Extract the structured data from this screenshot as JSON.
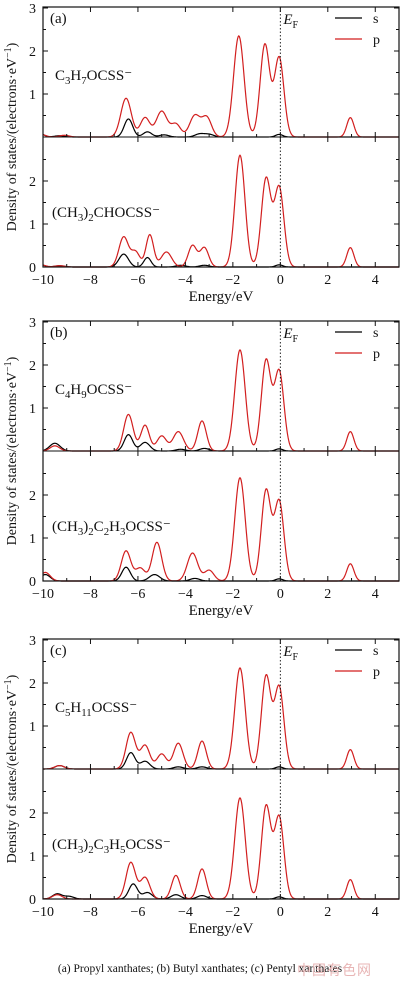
{
  "caption": "(a) Propyl xanthates; (b) Butyl xanthates; (c) Pentyl xanthates",
  "watermark": "中国有色网",
  "colors": {
    "s": "#000000",
    "p": "#d21f1f",
    "axis": "#111111"
  },
  "chart_data": [
    {
      "type": "line",
      "panel": "(a)",
      "xlabel": "Energy/eV",
      "ylabel": "Density of states/(electrons·eV⁻¹)",
      "xlim": [
        -10,
        5
      ],
      "x_ticks": [
        -10,
        -8,
        -6,
        -4,
        -2,
        0,
        2,
        4
      ],
      "fermi_label": "E_F",
      "legend": [
        "s",
        "p"
      ],
      "subplots": [
        {
          "label": "C3H7OCSS⁻",
          "ylim": [
            0,
            3
          ],
          "y_ticks": [
            1,
            2,
            3
          ],
          "series": [
            {
              "name": "s",
              "peaks": [
                [
                  -10.2,
                  0.1,
                  0.2
                ],
                [
                  -9.3,
                  0.03,
                  0.2
                ],
                [
                  -6.4,
                  0.42,
                  0.18
                ],
                [
                  -5.6,
                  0.12,
                  0.18
                ],
                [
                  -4.9,
                  0.05,
                  0.2
                ],
                [
                  -3.4,
                  0.07,
                  0.2
                ],
                [
                  -3.0,
                  0.06,
                  0.2
                ],
                [
                  -0.05,
                  0.06,
                  0.15
                ]
              ]
            },
            {
              "name": "p",
              "peaks": [
                [
                  -10.1,
                  0.06,
                  0.2
                ],
                [
                  -9.1,
                  0.04,
                  0.2
                ],
                [
                  -6.5,
                  0.9,
                  0.22
                ],
                [
                  -5.7,
                  0.45,
                  0.2
                ],
                [
                  -5.0,
                  0.6,
                  0.23
                ],
                [
                  -4.4,
                  0.3,
                  0.2
                ],
                [
                  -3.6,
                  0.5,
                  0.22
                ],
                [
                  -3.1,
                  0.45,
                  0.2
                ],
                [
                  -1.75,
                  2.35,
                  0.22
                ],
                [
                  -0.65,
                  2.15,
                  0.2
                ],
                [
                  -0.05,
                  1.85,
                  0.2
                ],
                [
                  2.95,
                  0.45,
                  0.15
                ]
              ]
            }
          ]
        },
        {
          "label": "(CH3)2CHOCSS⁻",
          "ylim": [
            0,
            3
          ],
          "y_ticks": [
            0,
            1,
            2
          ],
          "series": [
            {
              "name": "s",
              "peaks": [
                [
                  -10.2,
                  0.08,
                  0.2
                ],
                [
                  -9.3,
                  0.03,
                  0.2
                ],
                [
                  -6.6,
                  0.3,
                  0.2
                ],
                [
                  -5.6,
                  0.22,
                  0.15
                ],
                [
                  -4.2,
                  0.04,
                  0.2
                ],
                [
                  -3.2,
                  0.04,
                  0.2
                ],
                [
                  -0.05,
                  0.05,
                  0.15
                ]
              ]
            },
            {
              "name": "p",
              "peaks": [
                [
                  -10.1,
                  0.05,
                  0.2
                ],
                [
                  -9.3,
                  0.03,
                  0.2
                ],
                [
                  -6.6,
                  0.7,
                  0.2
                ],
                [
                  -6.1,
                  0.35,
                  0.18
                ],
                [
                  -5.5,
                  0.75,
                  0.16
                ],
                [
                  -4.8,
                  0.35,
                  0.22
                ],
                [
                  -3.7,
                  0.5,
                  0.18
                ],
                [
                  -3.2,
                  0.45,
                  0.18
                ],
                [
                  -1.7,
                  2.6,
                  0.21
                ],
                [
                  -0.6,
                  2.05,
                  0.2
                ],
                [
                  -0.05,
                  1.85,
                  0.2
                ],
                [
                  2.95,
                  0.45,
                  0.15
                ]
              ]
            }
          ]
        }
      ]
    },
    {
      "type": "line",
      "panel": "(b)",
      "xlabel": "Energy/eV",
      "ylabel": "Density of states/(electrons·eV⁻¹)",
      "xlim": [
        -10,
        5
      ],
      "x_ticks": [
        -10,
        -8,
        -6,
        -4,
        -2,
        0,
        2,
        4
      ],
      "fermi_label": "E_F",
      "legend": [
        "s",
        "p"
      ],
      "subplots": [
        {
          "label": "C4H9OCSS⁻",
          "ylim": [
            0,
            3
          ],
          "y_ticks": [
            1,
            2,
            3
          ],
          "series": [
            {
              "name": "s",
              "peaks": [
                [
                  -9.5,
                  0.18,
                  0.22
                ],
                [
                  -6.4,
                  0.38,
                  0.18
                ],
                [
                  -5.7,
                  0.2,
                  0.2
                ],
                [
                  -4.2,
                  0.04,
                  0.2
                ],
                [
                  -3.2,
                  0.06,
                  0.2
                ],
                [
                  -0.05,
                  0.05,
                  0.15
                ]
              ]
            },
            {
              "name": "p",
              "peaks": [
                [
                  -9.5,
                  0.12,
                  0.2
                ],
                [
                  -6.4,
                  0.85,
                  0.2
                ],
                [
                  -5.7,
                  0.6,
                  0.18
                ],
                [
                  -5.0,
                  0.35,
                  0.2
                ],
                [
                  -4.3,
                  0.45,
                  0.22
                ],
                [
                  -3.3,
                  0.7,
                  0.18
                ],
                [
                  -1.7,
                  2.35,
                  0.22
                ],
                [
                  -0.6,
                  2.1,
                  0.2
                ],
                [
                  -0.05,
                  1.85,
                  0.2
                ],
                [
                  2.95,
                  0.45,
                  0.15
                ]
              ]
            }
          ]
        },
        {
          "label": "(CH3)2C2H3OCSS⁻",
          "ylim": [
            0,
            3
          ],
          "y_ticks": [
            0,
            1,
            2
          ],
          "series": [
            {
              "name": "s",
              "peaks": [
                [
                  -9.9,
                  0.15,
                  0.2
                ],
                [
                  -6.5,
                  0.32,
                  0.18
                ],
                [
                  -5.3,
                  0.15,
                  0.22
                ],
                [
                  -3.6,
                  0.06,
                  0.2
                ],
                [
                  -0.05,
                  0.05,
                  0.15
                ]
              ]
            },
            {
              "name": "p",
              "peaks": [
                [
                  -9.9,
                  0.2,
                  0.2
                ],
                [
                  -6.5,
                  0.7,
                  0.2
                ],
                [
                  -5.9,
                  0.3,
                  0.2
                ],
                [
                  -5.2,
                  0.9,
                  0.2
                ],
                [
                  -3.7,
                  0.65,
                  0.22
                ],
                [
                  -3.0,
                  0.25,
                  0.2
                ],
                [
                  -1.7,
                  2.4,
                  0.22
                ],
                [
                  -0.6,
                  2.1,
                  0.2
                ],
                [
                  -0.05,
                  1.85,
                  0.2
                ],
                [
                  2.95,
                  0.4,
                  0.15
                ]
              ]
            }
          ]
        }
      ]
    },
    {
      "type": "line",
      "panel": "(c)",
      "xlabel": "Energy/eV",
      "ylabel": "Density of states/(electrons·eV⁻¹)",
      "xlim": [
        -10,
        5
      ],
      "x_ticks": [
        -10,
        -8,
        -6,
        -4,
        -2,
        0,
        2,
        4
      ],
      "fermi_label": "E_F",
      "legend": [
        "s",
        "p"
      ],
      "subplots": [
        {
          "label": "C5H11OCSS⁻",
          "ylim": [
            0,
            3
          ],
          "y_ticks": [
            1,
            2,
            3
          ],
          "series": [
            {
              "name": "s",
              "peaks": [
                [
                  -9.3,
                  0.08,
                  0.2
                ],
                [
                  -6.3,
                  0.38,
                  0.18
                ],
                [
                  -5.7,
                  0.18,
                  0.2
                ],
                [
                  -4.3,
                  0.05,
                  0.2
                ],
                [
                  -3.3,
                  0.05,
                  0.2
                ],
                [
                  -0.05,
                  0.05,
                  0.15
                ]
              ]
            },
            {
              "name": "p",
              "peaks": [
                [
                  -9.3,
                  0.08,
                  0.2
                ],
                [
                  -6.3,
                  0.85,
                  0.2
                ],
                [
                  -5.7,
                  0.55,
                  0.2
                ],
                [
                  -5.0,
                  0.35,
                  0.2
                ],
                [
                  -4.3,
                  0.6,
                  0.2
                ],
                [
                  -3.3,
                  0.65,
                  0.18
                ],
                [
                  -1.7,
                  2.35,
                  0.22
                ],
                [
                  -0.6,
                  2.15,
                  0.2
                ],
                [
                  -0.05,
                  1.9,
                  0.2
                ],
                [
                  2.95,
                  0.45,
                  0.15
                ]
              ]
            }
          ]
        },
        {
          "label": "(CH3)2C3H5OCSS⁻",
          "ylim": [
            0,
            3
          ],
          "y_ticks": [
            0,
            1,
            2
          ],
          "series": [
            {
              "name": "s",
              "peaks": [
                [
                  -9.4,
                  0.12,
                  0.2
                ],
                [
                  -8.9,
                  0.06,
                  0.2
                ],
                [
                  -6.2,
                  0.35,
                  0.18
                ],
                [
                  -5.6,
                  0.15,
                  0.2
                ],
                [
                  -4.4,
                  0.1,
                  0.2
                ],
                [
                  -3.3,
                  0.08,
                  0.2
                ],
                [
                  -0.05,
                  0.05,
                  0.15
                ]
              ]
            },
            {
              "name": "p",
              "peaks": [
                [
                  -9.4,
                  0.1,
                  0.2
                ],
                [
                  -6.3,
                  0.85,
                  0.2
                ],
                [
                  -5.7,
                  0.5,
                  0.2
                ],
                [
                  -4.4,
                  0.55,
                  0.18
                ],
                [
                  -3.3,
                  0.7,
                  0.18
                ],
                [
                  -1.7,
                  2.35,
                  0.22
                ],
                [
                  -0.6,
                  2.15,
                  0.2
                ],
                [
                  -0.05,
                  1.9,
                  0.2
                ],
                [
                  2.95,
                  0.45,
                  0.15
                ]
              ]
            }
          ]
        }
      ]
    }
  ]
}
